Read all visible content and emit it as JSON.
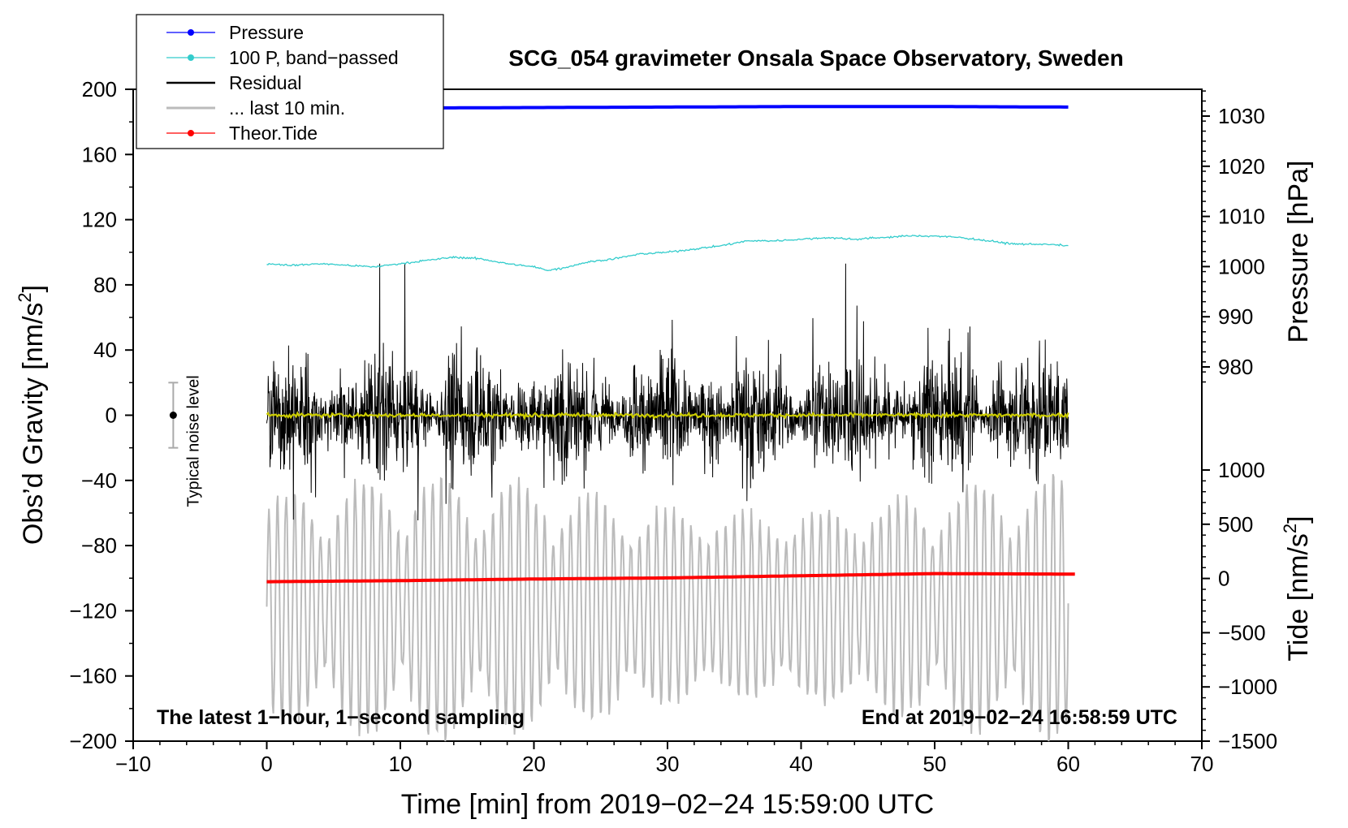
{
  "chart_data": {
    "type": "line",
    "title": "SCG_054 gravimeter Onsala Space Observatory, Sweden",
    "xlabel": "Time [min] from 2019−02−24 15:59:00 UTC",
    "ylabel_left": "Obs’d Gravity [nm/s",
    "ylabel_left_sup": "2",
    "ylabel_left_close": "]",
    "ylabel_right_pressure": "Pressure [hPa]",
    "ylabel_right_tide": "Tide [nm/s",
    "ylabel_right_tide_sup": "2",
    "ylabel_right_tide_close": "]",
    "xlim": [
      -10,
      70
    ],
    "ylim_left": [
      -200,
      200
    ],
    "ylim_pressure": [
      970,
      1035
    ],
    "ylim_tide": [
      -1500,
      1000
    ],
    "x_ticks": [
      -10,
      0,
      10,
      20,
      30,
      40,
      50,
      60,
      70
    ],
    "x_tick_labels": [
      "−10",
      "0",
      "10",
      "20",
      "30",
      "40",
      "50",
      "60",
      "70"
    ],
    "y_left_ticks": [
      200,
      160,
      120,
      80,
      40,
      0,
      -40,
      -80,
      -120,
      -160,
      -200
    ],
    "y_left_tick_labels": [
      "200",
      "160",
      "120",
      "80",
      "40",
      "0",
      "−40",
      "−80",
      "−120",
      "−160",
      "−200"
    ],
    "pressure_ticks": [
      1030,
      1020,
      1010,
      1000,
      990,
      980
    ],
    "pressure_tick_labels": [
      "1030",
      "1020",
      "1010",
      "1000",
      "990",
      "980"
    ],
    "tide_ticks": [
      1000,
      500,
      0,
      -500,
      -1000,
      -1500
    ],
    "tide_tick_labels": [
      "1000",
      "500",
      "0",
      "−500",
      "−1000",
      "−1500"
    ],
    "annotation_left": "The latest 1−hour, 1−second sampling",
    "annotation_right": "End at 2019−02−24 16:58:59 UTC",
    "noise_label": "Typical noise level",
    "noise_bar": {
      "x": -7,
      "center": 0,
      "half_range": 20
    },
    "legend": [
      {
        "label": "Pressure",
        "color": "#0000ff",
        "marker": true
      },
      {
        "label": "100 P, band−passed",
        "color": "#33cccc",
        "marker": true
      },
      {
        "label": "Residual",
        "color": "#000000",
        "marker": false
      },
      {
        "label": "... last 10 min.",
        "color": "#bbbbbb",
        "marker": false
      },
      {
        "label": "Theor.Tide",
        "color": "#ff0000",
        "marker": true
      }
    ],
    "series": [
      {
        "name": "Pressure",
        "axis": "pressure",
        "color": "#0000ff",
        "x": [
          0,
          10,
          20,
          30,
          40,
          50,
          60
        ],
        "y": [
          1031.6,
          1031.6,
          1031.7,
          1031.8,
          1031.9,
          1031.9,
          1031.8
        ]
      },
      {
        "name": "100 P, band−passed",
        "axis": "left",
        "color": "#33cccc",
        "x": [
          0,
          2,
          4,
          6,
          8,
          10,
          12,
          14,
          16,
          18,
          20,
          21,
          22,
          24,
          26,
          28,
          30,
          32,
          34,
          36,
          38,
          40,
          42,
          44,
          46,
          48,
          50,
          52,
          54,
          56,
          58,
          60
        ],
        "y": [
          93,
          92,
          93,
          92,
          91,
          93,
          95,
          97,
          96,
          93,
          91,
          89,
          90,
          94,
          96,
          99,
          100,
          102,
          104,
          107,
          107,
          108,
          109,
          108,
          109,
          110,
          110,
          109,
          107,
          105,
          105,
          104
        ]
      },
      {
        "name": "Residual",
        "axis": "left",
        "color": "#000000",
        "x": [
          0,
          60
        ],
        "amplitude_envelope": [
          -75,
          93
        ]
      },
      {
        "name": "Residual (smoothed)",
        "axis": "left",
        "color": "#cccc00",
        "x": [
          0,
          60
        ],
        "y": [
          0,
          0
        ]
      },
      {
        "name": "... last 10 min.",
        "axis": "left",
        "color": "#bbbbbb",
        "x": [
          0,
          60
        ],
        "amplitude_envelope": [
          -200,
          -35
        ]
      },
      {
        "name": "Theor.Tide",
        "axis": "tide",
        "color": "#ff0000",
        "x": [
          0,
          10,
          20,
          30,
          40,
          50,
          60.5
        ],
        "y": [
          -30,
          -20,
          -5,
          5,
          25,
          45,
          40
        ]
      }
    ]
  }
}
